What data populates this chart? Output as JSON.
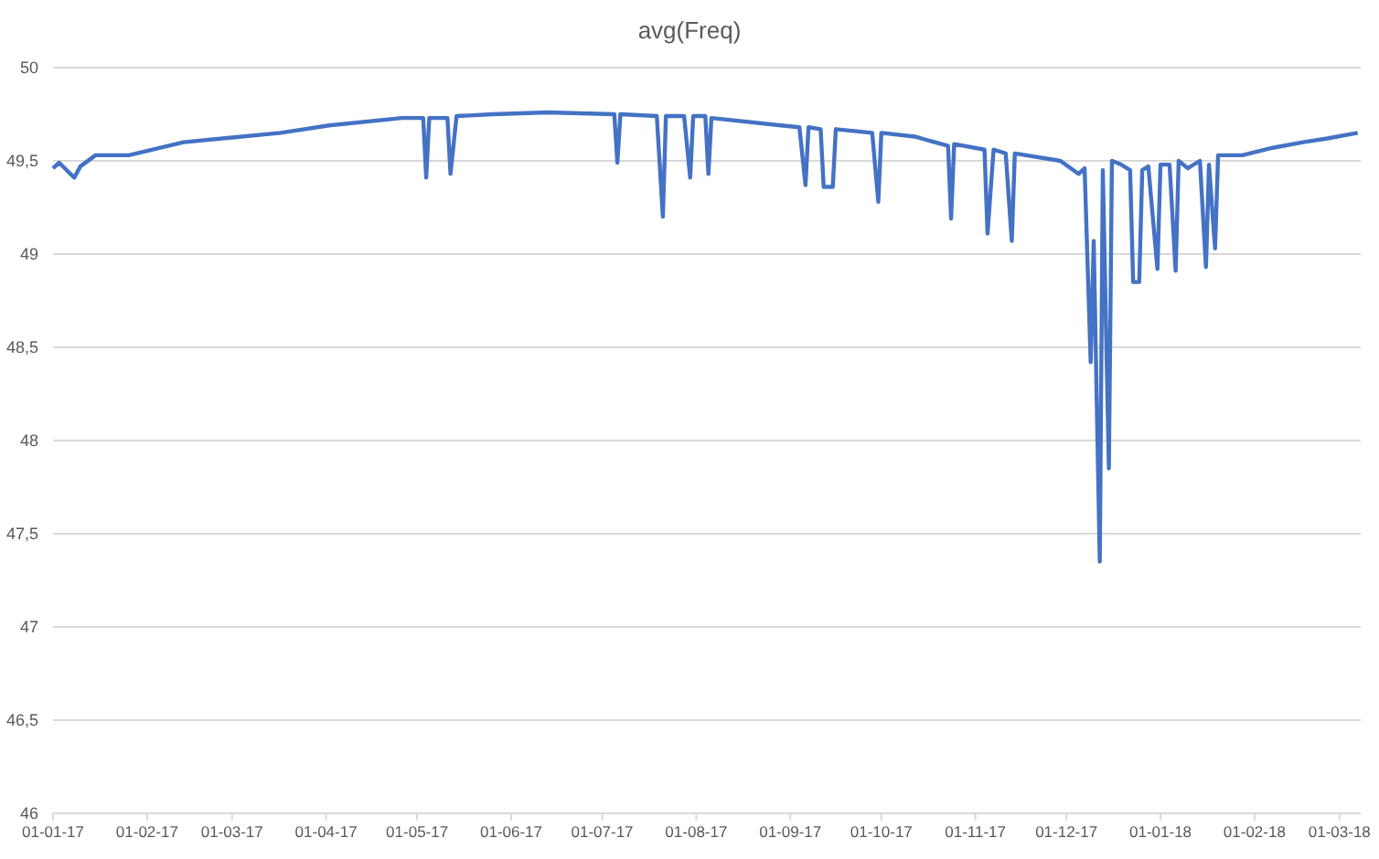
{
  "chart_data": {
    "type": "line",
    "title": "avg(Freq)",
    "x": [
      "2017-01-01",
      "2017-01-03",
      "2017-01-08",
      "2017-01-10",
      "2017-01-15",
      "2017-01-26",
      "2017-02-13",
      "2017-03-17",
      "2017-04-02",
      "2017-04-26",
      "2017-05-03",
      "2017-05-04",
      "2017-05-05",
      "2017-05-11",
      "2017-05-12",
      "2017-05-14",
      "2017-05-26",
      "2017-06-13",
      "2017-07-05",
      "2017-07-06",
      "2017-07-07",
      "2017-07-19",
      "2017-07-21",
      "2017-07-22",
      "2017-07-28",
      "2017-07-30",
      "2017-07-31",
      "2017-08-04",
      "2017-08-05",
      "2017-08-06",
      "2017-08-29",
      "2017-09-04",
      "2017-09-06",
      "2017-09-07",
      "2017-09-11",
      "2017-09-12",
      "2017-09-15",
      "2017-09-16",
      "2017-09-28",
      "2017-09-30",
      "2017-10-01",
      "2017-10-12",
      "2017-10-23",
      "2017-10-24",
      "2017-10-25",
      "2017-11-04",
      "2017-11-05",
      "2017-11-07",
      "2017-11-11",
      "2017-11-13",
      "2017-11-14",
      "2017-11-29",
      "2017-12-05",
      "2017-12-07",
      "2017-12-09",
      "2017-12-10",
      "2017-12-12",
      "2017-12-13",
      "2017-12-15",
      "2017-12-16",
      "2017-12-19",
      "2017-12-22",
      "2017-12-23",
      "2017-12-25",
      "2017-12-26",
      "2017-12-28",
      "2017-12-31",
      "2018-01-01",
      "2018-01-04",
      "2018-01-06",
      "2018-01-07",
      "2018-01-10",
      "2018-01-14",
      "2018-01-16",
      "2018-01-17",
      "2018-01-19",
      "2018-01-20",
      "2018-01-28",
      "2018-02-07",
      "2018-02-17",
      "2018-02-25",
      "2018-03-07"
    ],
    "series": [
      {
        "color": "#4472c4",
        "values": [
          49.46,
          49.49,
          49.41,
          49.47,
          49.53,
          49.53,
          49.6,
          49.65,
          49.69,
          49.73,
          49.73,
          49.41,
          49.73,
          49.73,
          49.43,
          49.74,
          49.75,
          49.76,
          49.75,
          49.49,
          49.75,
          49.74,
          49.2,
          49.74,
          49.74,
          49.41,
          49.74,
          49.74,
          49.43,
          49.73,
          49.69,
          49.68,
          49.37,
          49.68,
          49.67,
          49.36,
          49.36,
          49.67,
          49.65,
          49.28,
          49.65,
          49.63,
          49.58,
          49.19,
          49.59,
          49.56,
          49.11,
          49.56,
          49.54,
          49.07,
          49.54,
          49.5,
          49.43,
          49.46,
          48.42,
          49.07,
          47.35,
          49.45,
          47.85,
          49.5,
          49.48,
          49.45,
          48.85,
          48.85,
          49.45,
          49.47,
          48.92,
          49.48,
          49.48,
          48.91,
          49.5,
          49.46,
          49.5,
          48.93,
          49.48,
          49.03,
          49.53,
          49.53,
          49.57,
          49.6,
          49.62,
          49.65
        ]
      }
    ],
    "xlim": [
      "2017-01-01",
      "2018-03-08"
    ],
    "xticks": [
      {
        "value": "2017-01-01",
        "label": "01-01-17"
      },
      {
        "value": "2017-02-01",
        "label": "01-02-17"
      },
      {
        "value": "2017-03-01",
        "label": "01-03-17"
      },
      {
        "value": "2017-04-01",
        "label": "01-04-17"
      },
      {
        "value": "2017-05-01",
        "label": "01-05-17"
      },
      {
        "value": "2017-06-01",
        "label": "01-06-17"
      },
      {
        "value": "2017-07-01",
        "label": "01-07-17"
      },
      {
        "value": "2017-08-01",
        "label": "01-08-17"
      },
      {
        "value": "2017-09-01",
        "label": "01-09-17"
      },
      {
        "value": "2017-10-01",
        "label": "01-10-17"
      },
      {
        "value": "2017-11-01",
        "label": "01-11-17"
      },
      {
        "value": "2017-12-01",
        "label": "01-12-17"
      },
      {
        "value": "2018-01-01",
        "label": "01-01-18"
      },
      {
        "value": "2018-02-01",
        "label": "01-02-18"
      },
      {
        "value": "2018-03-01",
        "label": "01-03-18"
      }
    ],
    "ylim": [
      46,
      50
    ],
    "yticks": [
      46,
      {
        "value": 46.5,
        "label": "46,5"
      },
      47,
      {
        "value": 47.5,
        "label": "47,5"
      },
      48,
      {
        "value": 48.5,
        "label": "48,5"
      },
      49,
      {
        "value": 49.5,
        "label": "49,5"
      },
      50
    ],
    "grid": "y",
    "marker": "none",
    "line_style": "solid"
  }
}
